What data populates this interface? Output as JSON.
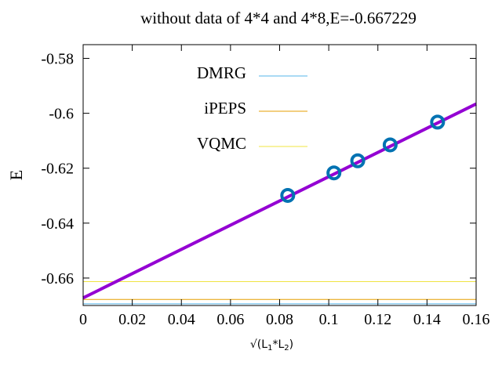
{
  "chart_data": {
    "type": "line",
    "title": "without data of 4*4 and 4*8,E=-0.667229",
    "xlabel": "√(L₁*L₂)",
    "xlabel_parts": {
      "lead": "√(L",
      "sub1": "1",
      "mid": "*L",
      "sub2": "2",
      "tail": ")"
    },
    "ylabel": "E",
    "xlim": [
      0,
      0.16
    ],
    "ylim": [
      -0.67,
      -0.575
    ],
    "x_ticks": [
      0,
      0.02,
      0.04,
      0.06,
      0.08,
      0.1,
      0.12,
      0.14,
      0.16
    ],
    "x_tick_labels": [
      "0",
      "0.02",
      "0.04",
      "0.06",
      "0.08",
      "0.1",
      "0.12",
      "0.14",
      "0.16"
    ],
    "y_ticks": [
      -0.58,
      -0.6,
      -0.62,
      -0.64,
      -0.66
    ],
    "y_tick_labels": [
      "-0.58",
      "-0.6",
      "-0.62",
      "-0.64",
      "-0.66"
    ],
    "grid": false,
    "legend_position": "top-left",
    "series": [
      {
        "name": "DMRG",
        "kind": "hline",
        "y": -0.6694,
        "color": "#56b4e9"
      },
      {
        "name": "iPEPS",
        "kind": "hline",
        "y": -0.6678,
        "color": "#e69f00"
      },
      {
        "name": "VQMC",
        "kind": "hline",
        "y": -0.6613,
        "color": "#f0e442"
      },
      {
        "kind": "fit",
        "color": "#9400d3",
        "x": [
          0,
          0.16
        ],
        "y": [
          -0.66723,
          -0.5966
        ]
      },
      {
        "kind": "points",
        "color": "#0072b2",
        "x": [
          0.0833,
          0.1021,
          0.1118,
          0.125,
          0.1443
        ],
        "y": [
          -0.6299,
          -0.6217,
          -0.6173,
          -0.6115,
          -0.6032
        ]
      }
    ]
  }
}
